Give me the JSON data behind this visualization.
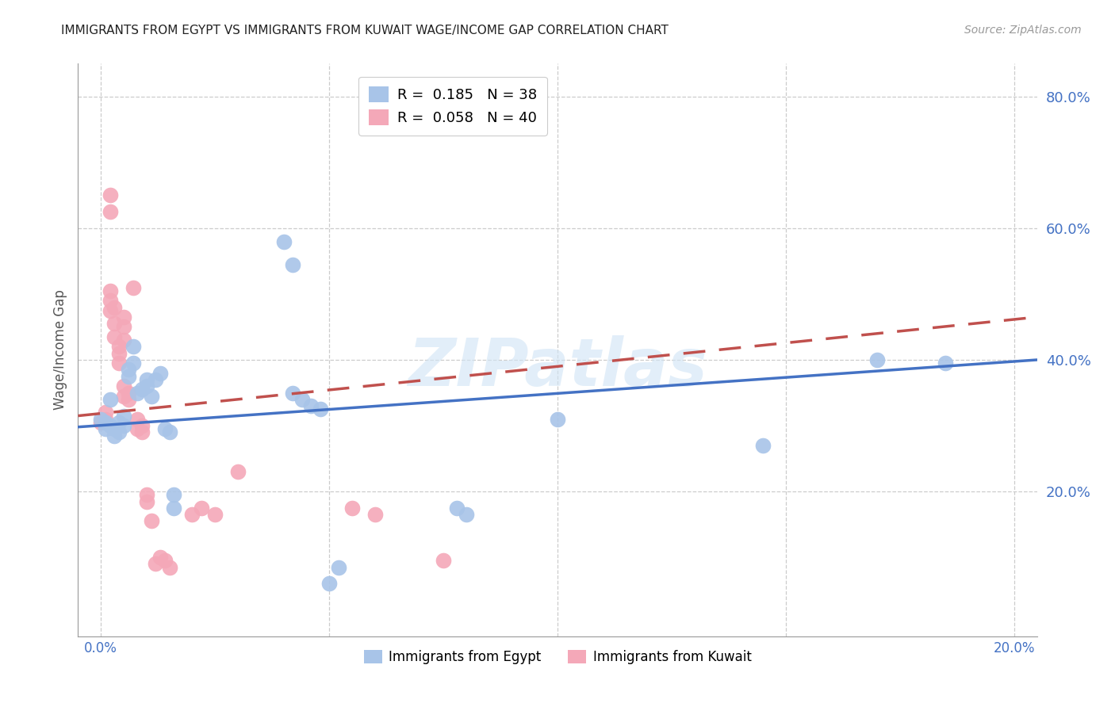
{
  "title": "IMMIGRANTS FROM EGYPT VS IMMIGRANTS FROM KUWAIT WAGE/INCOME GAP CORRELATION CHART",
  "source": "Source: ZipAtlas.com",
  "ylabel": "Wage/Income Gap",
  "right_yticks": [
    "80.0%",
    "60.0%",
    "40.0%",
    "20.0%"
  ],
  "right_ytick_vals": [
    0.8,
    0.6,
    0.4,
    0.2
  ],
  "legend_label_egypt": "Immigrants from Egypt",
  "legend_label_kuwait": "Immigrants from Kuwait",
  "egypt_color": "#a8c4e8",
  "kuwait_color": "#f4a8b8",
  "egypt_line_color": "#4472c4",
  "kuwait_line_color": "#c0504d",
  "watermark": "ZIPatlas",
  "egypt_points": [
    [
      0.0,
      0.31
    ],
    [
      0.001,
      0.295
    ],
    [
      0.001,
      0.305
    ],
    [
      0.002,
      0.3
    ],
    [
      0.002,
      0.34
    ],
    [
      0.003,
      0.295
    ],
    [
      0.003,
      0.285
    ],
    [
      0.004,
      0.29
    ],
    [
      0.004,
      0.305
    ],
    [
      0.005,
      0.3
    ],
    [
      0.005,
      0.315
    ],
    [
      0.006,
      0.385
    ],
    [
      0.006,
      0.375
    ],
    [
      0.007,
      0.42
    ],
    [
      0.007,
      0.395
    ],
    [
      0.008,
      0.35
    ],
    [
      0.009,
      0.355
    ],
    [
      0.01,
      0.37
    ],
    [
      0.01,
      0.36
    ],
    [
      0.011,
      0.345
    ],
    [
      0.012,
      0.37
    ],
    [
      0.013,
      0.38
    ],
    [
      0.014,
      0.295
    ],
    [
      0.015,
      0.29
    ],
    [
      0.016,
      0.175
    ],
    [
      0.016,
      0.195
    ],
    [
      0.04,
      0.58
    ],
    [
      0.042,
      0.545
    ],
    [
      0.042,
      0.35
    ],
    [
      0.044,
      0.34
    ],
    [
      0.046,
      0.33
    ],
    [
      0.048,
      0.325
    ],
    [
      0.05,
      0.06
    ],
    [
      0.052,
      0.085
    ],
    [
      0.078,
      0.175
    ],
    [
      0.08,
      0.165
    ],
    [
      0.1,
      0.31
    ],
    [
      0.145,
      0.27
    ],
    [
      0.17,
      0.4
    ],
    [
      0.185,
      0.395
    ]
  ],
  "kuwait_points": [
    [
      0.0,
      0.305
    ],
    [
      0.001,
      0.31
    ],
    [
      0.001,
      0.32
    ],
    [
      0.002,
      0.65
    ],
    [
      0.002,
      0.625
    ],
    [
      0.002,
      0.475
    ],
    [
      0.002,
      0.49
    ],
    [
      0.002,
      0.505
    ],
    [
      0.003,
      0.435
    ],
    [
      0.003,
      0.455
    ],
    [
      0.003,
      0.48
    ],
    [
      0.004,
      0.42
    ],
    [
      0.004,
      0.41
    ],
    [
      0.004,
      0.395
    ],
    [
      0.005,
      0.36
    ],
    [
      0.005,
      0.345
    ],
    [
      0.005,
      0.43
    ],
    [
      0.005,
      0.45
    ],
    [
      0.005,
      0.465
    ],
    [
      0.006,
      0.35
    ],
    [
      0.006,
      0.34
    ],
    [
      0.007,
      0.51
    ],
    [
      0.008,
      0.295
    ],
    [
      0.008,
      0.31
    ],
    [
      0.009,
      0.3
    ],
    [
      0.009,
      0.29
    ],
    [
      0.01,
      0.185
    ],
    [
      0.01,
      0.195
    ],
    [
      0.011,
      0.155
    ],
    [
      0.012,
      0.09
    ],
    [
      0.013,
      0.1
    ],
    [
      0.014,
      0.095
    ],
    [
      0.015,
      0.085
    ],
    [
      0.02,
      0.165
    ],
    [
      0.022,
      0.175
    ],
    [
      0.025,
      0.165
    ],
    [
      0.03,
      0.23
    ],
    [
      0.055,
      0.175
    ],
    [
      0.06,
      0.165
    ],
    [
      0.075,
      0.095
    ]
  ],
  "xlim": [
    -0.005,
    0.205
  ],
  "ylim": [
    -0.02,
    0.85
  ],
  "egypt_line": [
    [
      -0.005,
      0.298
    ],
    [
      0.205,
      0.4
    ]
  ],
  "kuwait_line": [
    [
      -0.005,
      0.315
    ],
    [
      0.205,
      0.465
    ]
  ],
  "xgrid_lines": [
    0.0,
    0.05,
    0.1,
    0.15,
    0.2
  ],
  "ygrid_lines": [
    0.2,
    0.4,
    0.6,
    0.8
  ]
}
